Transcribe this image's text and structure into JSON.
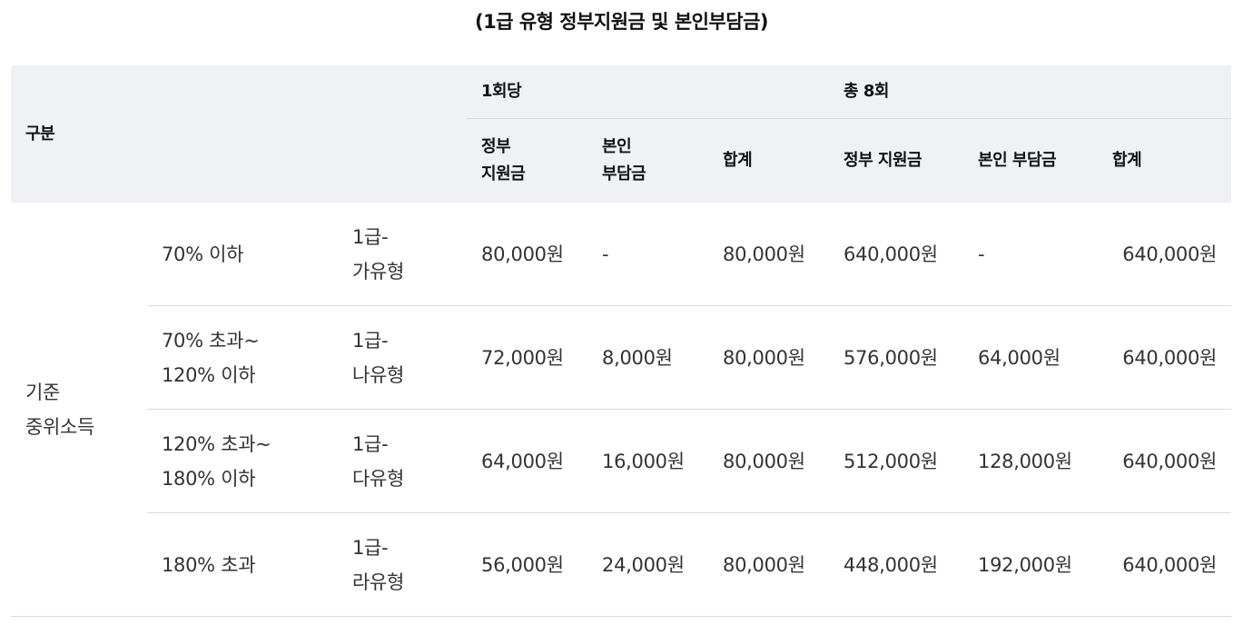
{
  "title": "(1급 유형 정부지원금 및 본인부담금)",
  "header": {
    "category": "구분",
    "per_session": "1회당",
    "total": "총 8회",
    "gov_support_line1": "정부",
    "gov_support_line2": "지원금",
    "self_pay_line1": "본인",
    "self_pay_line2": "부담금",
    "sum": "합계",
    "total_gov_support": "정부 지원금",
    "total_self_pay": "본인 부담금",
    "total_sum": "합계"
  },
  "group_label_line1": "기준",
  "group_label_line2": "중위소득",
  "rows": [
    {
      "income_line1": "70% 이하",
      "income_line2": "",
      "type_line1": "1급-",
      "type_line2": "가유형",
      "gov": "80,000원",
      "self": "-",
      "sum": "80,000원",
      "total_gov": "640,000원",
      "total_self": "-",
      "total_sum": "640,000원"
    },
    {
      "income_line1": "70% 초과~",
      "income_line2": "120% 이하",
      "type_line1": "1급-",
      "type_line2": "나유형",
      "gov": "72,000원",
      "self": "8,000원",
      "sum": "80,000원",
      "total_gov": "576,000원",
      "total_self": "64,000원",
      "total_sum": "640,000원"
    },
    {
      "income_line1": "120% 초과~",
      "income_line2": "180% 이하",
      "type_line1": "1급-",
      "type_line2": "다유형",
      "gov": "64,000원",
      "self": "16,000원",
      "sum": "80,000원",
      "total_gov": "512,000원",
      "total_self": "128,000원",
      "total_sum": "640,000원"
    },
    {
      "income_line1": "180% 초과",
      "income_line2": "",
      "type_line1": "1급-",
      "type_line2": "라유형",
      "gov": "56,000원",
      "self": "24,000원",
      "sum": "80,000원",
      "total_gov": "448,000원",
      "total_self": "192,000원",
      "total_sum": "640,000원"
    }
  ]
}
